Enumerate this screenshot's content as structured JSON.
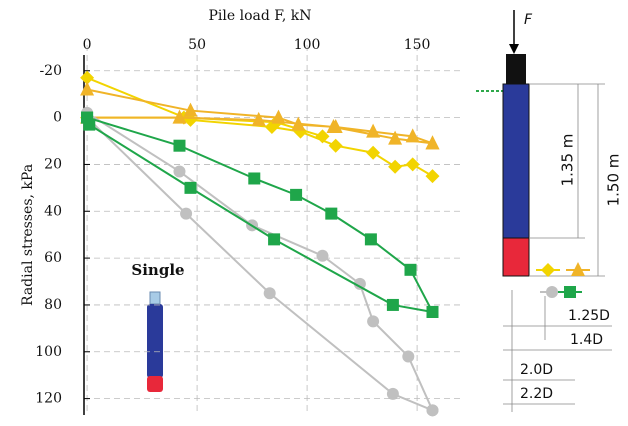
{
  "chart_data": {
    "type": "line",
    "xlabel": "Pile load F, kN",
    "ylabel": "Radial stresses, kPa",
    "annotation": "Single",
    "xlim": [
      -1.4,
      169.5
    ],
    "xticks": [
      0,
      50,
      100,
      150
    ],
    "ylim": [
      -31,
      127
    ],
    "yticks": [
      -20,
      0,
      20,
      40,
      60,
      80,
      100,
      120
    ],
    "y_inverted": true,
    "grid": true,
    "series": [
      {
        "color": "#f2d400",
        "marker": "diamond",
        "x": [
          0,
          47,
          84,
          97,
          113,
          130,
          140,
          148,
          157,
          null,
          0,
          44,
          86,
          107
        ],
        "values": [
          -17,
          1,
          4,
          6,
          12,
          15,
          21,
          20,
          25,
          null,
          0,
          0,
          2,
          8
        ]
      },
      {
        "color": "#f0b428",
        "marker": "triangle",
        "x": [
          0,
          47,
          87,
          96,
          113,
          130,
          148,
          157,
          null,
          0,
          42,
          78,
          112,
          140,
          157
        ],
        "values": [
          -12,
          -3,
          0,
          3,
          4,
          6,
          8,
          11,
          null,
          0,
          0,
          1,
          4,
          9,
          11
        ]
      },
      {
        "color": "#c0c0c0",
        "marker": "circle",
        "x": [
          0,
          42,
          75,
          107,
          124,
          130,
          146,
          157,
          null,
          0,
          45,
          83,
          139,
          157
        ],
        "values": [
          -2,
          23,
          46,
          59,
          71,
          87,
          102,
          125,
          null,
          0,
          41,
          75,
          118,
          125
        ]
      },
      {
        "color": "#1fa64a",
        "marker": "square",
        "x": [
          0,
          42,
          76,
          95,
          111,
          129,
          147,
          157,
          null,
          0,
          1,
          47,
          85,
          139,
          157
        ],
        "values": [
          0,
          12,
          26,
          33,
          41,
          52,
          65,
          83,
          null,
          0,
          3,
          30,
          52,
          80,
          83
        ]
      }
    ]
  },
  "schematic": {
    "force": "F",
    "length_inner": "1.35 m",
    "length_outer": "1.50 m",
    "dims": [
      "1.25D",
      "1.4D",
      "2.0D",
      "2.2D"
    ]
  }
}
